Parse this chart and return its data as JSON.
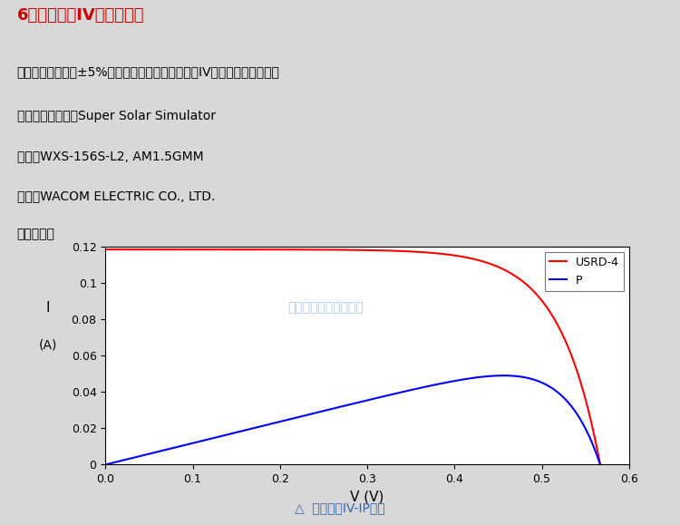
{
  "title": "6、标准电池IV曲线和参数",
  "line1": "采用光谱匹配度为±5%的太阳模拟器测试标准电池IV曲线，并给出参数。",
  "line2": "太阳模拟器名称：Super Solar Simulator",
  "line3": "型号：WXS-156S-L2, AM1.5GMM",
  "line4": "厂家：WACOM ELECTRIC CO., LTD.",
  "line5": "国家：日本",
  "watermark": "北京衡工仪器有限公司",
  "caption": "△  标准电池IV-IP曲线",
  "xlabel": "V (V)",
  "ylabel_top": "I",
  "ylabel_bot": "(A)",
  "xlim": [
    0,
    0.6
  ],
  "ylim": [
    0,
    0.12
  ],
  "xticks": [
    0,
    0.1,
    0.2,
    0.3,
    0.4,
    0.5,
    0.6
  ],
  "yticks": [
    0,
    0.02,
    0.04,
    0.06,
    0.08,
    0.1,
    0.12
  ],
  "legend_labels": [
    "USRD-4",
    "P"
  ],
  "legend_colors": [
    "#ff0000",
    "#0000ff"
  ],
  "iv_Isc": 0.1185,
  "iv_Voc": 0.567,
  "background_color": "#d8d8d8",
  "plot_bg_color": "#ffffff",
  "title_color": "#cc0000",
  "text_color": "#000000",
  "caption_color": "#3366aa",
  "watermark_color": "#6699cc"
}
